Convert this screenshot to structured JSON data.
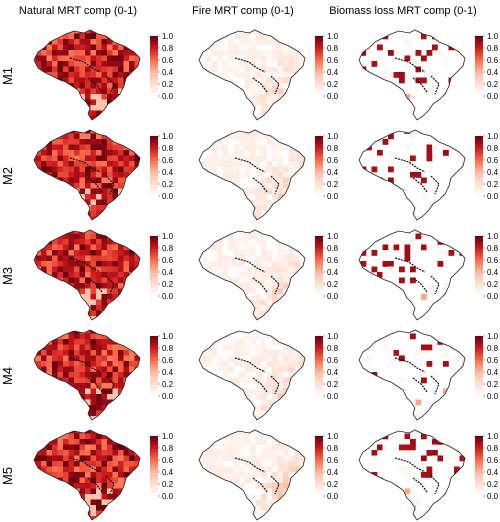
{
  "columns": [
    {
      "title": "Natural MRT comp (0-1)"
    },
    {
      "title": "Fire MRT comp (0-1)"
    },
    {
      "title": "Biomass loss MRT comp (0-1)"
    }
  ],
  "rows": [
    "M1",
    "M2",
    "M3",
    "M4",
    "M5"
  ],
  "colorbar": {
    "ticks": [
      "1.0",
      "0.8",
      "0.6",
      "0.4",
      "0.2",
      "0.0"
    ],
    "range": [
      0,
      1
    ],
    "low_color": "#ffffff",
    "high_color": "#67000d"
  },
  "panel_intensity": [
    [
      "high",
      "low-east",
      "sparse-north"
    ],
    [
      "high",
      "low-east",
      "sparse-north"
    ],
    [
      "high",
      "low-east",
      "sparse-north"
    ],
    [
      "high",
      "low-east",
      "sparse-north"
    ],
    [
      "high",
      "medium-east",
      "sparse-north"
    ]
  ]
}
